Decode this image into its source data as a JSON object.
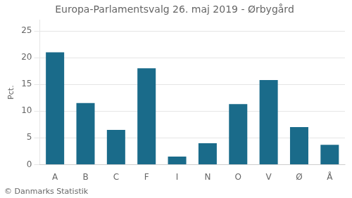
{
  "chart_data": {
    "type": "bar",
    "title": "Europa-Parlamentsvalg 26. maj 2019 - Ørbygård",
    "categories": [
      "A",
      "B",
      "C",
      "F",
      "I",
      "N",
      "O",
      "V",
      "Ø",
      "Å"
    ],
    "values": [
      21.0,
      11.5,
      6.5,
      18.0,
      1.5,
      4.0,
      11.3,
      15.8,
      7.0,
      3.7
    ],
    "color": "#1a6b8a",
    "ylabel": "Pct.",
    "ylim": [
      0,
      27
    ],
    "yticks": [
      0,
      5,
      10,
      15,
      20,
      25
    ],
    "grid": true,
    "annotations": [
      "© Danmarks Statistik"
    ]
  }
}
